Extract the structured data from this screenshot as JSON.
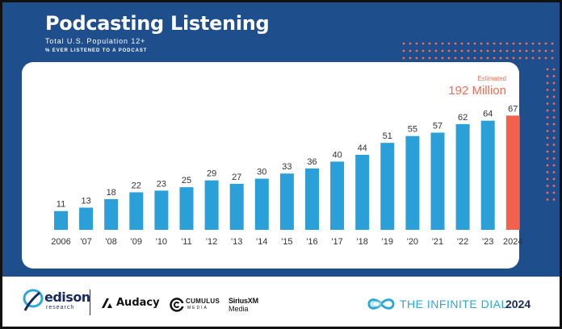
{
  "header": {
    "title": "Podcasting Listening",
    "subtitle": "Total U.S. Population 12+",
    "subtitle2": "% EVER LISTENED TO A PODCAST"
  },
  "annotation": {
    "label": "Estimated",
    "value": "192 Million"
  },
  "colors": {
    "banner": "#1f4e8c",
    "bar": "#2a9fd8",
    "highlight_bar": "#f2614b",
    "accent_text": "#f26b55",
    "dots": "#f26b55"
  },
  "chart_data": {
    "type": "bar",
    "title": "Podcasting Listening",
    "subtitle": "Total U.S. Population 12+",
    "ylabel": "% EVER LISTENED TO A PODCAST",
    "categories": [
      "2006",
      "'07",
      "'08",
      "'09",
      "'10",
      "'11",
      "'12",
      "'13",
      "'14",
      "'15",
      "'16",
      "'17",
      "'18",
      "'19",
      "'20",
      "'21",
      "'22",
      "'23",
      "2024"
    ],
    "values": [
      11,
      13,
      18,
      22,
      23,
      25,
      29,
      27,
      30,
      33,
      36,
      40,
      44,
      51,
      55,
      57,
      62,
      64,
      67
    ],
    "highlight_index": 18,
    "highlight_label": "Estimated",
    "highlight_note": "192 Million",
    "ylim": [
      0,
      70
    ],
    "grid": false,
    "data_labels": true
  },
  "footer": {
    "edison": "edison",
    "edison_sub": "research",
    "audacy": "Audacy",
    "cumulus": "CUMULUS",
    "cumulus_sub": "MEDIA",
    "sirius": "SiriusXM",
    "sirius_sub": "Media",
    "infinite": "THE INFINITE DIAL",
    "infinite_year": "2024"
  },
  "icons": {
    "edison": "edison-swirl-icon",
    "audacy": "audacy-a-icon",
    "cumulus": "cumulus-c-icon",
    "infinite": "infinity-icon"
  }
}
